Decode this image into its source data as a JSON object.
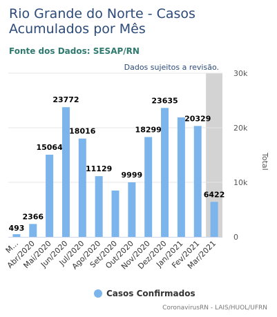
{
  "header": {
    "title": "Rio Grande do Norte - Casos Acumulados por Mês",
    "source": "Fonte dos Dados: SESAP/RN",
    "note": "Dados sujeitos a revisão."
  },
  "legend": {
    "label": "Casos Confirmados"
  },
  "credit": "CoronavirusRN - LAIS/HUOL/UFRN",
  "colors": {
    "bar": "#7cb5ec",
    "highlight_band": "#d3d3d3"
  },
  "chart_data": {
    "type": "bar",
    "ylabel": "Total",
    "yaxis_position": "right",
    "ylim": [
      0,
      30000
    ],
    "yticks": [
      "0",
      "10k",
      "20k",
      "30k"
    ],
    "categories": [
      "M...",
      "Abr/2020",
      "Mai/2020",
      "Jun/2020",
      "Jul/2020",
      "Ago/2020",
      "Set/2020",
      "Out/2020",
      "Nov/2020",
      "Dez/2020",
      "Jan/2021",
      "Fev/2021",
      "Mar/2021"
    ],
    "series": [
      {
        "name": "Casos Confirmados",
        "values": [
          493,
          2366,
          15064,
          23772,
          18016,
          11129,
          8500,
          9999,
          18299,
          23635,
          21900,
          20329,
          6422
        ],
        "labels": [
          "493",
          "2366",
          "15064",
          "23772",
          "18016",
          "11129",
          "",
          "9999",
          "18299",
          "23635",
          "",
          "20329",
          "6422"
        ]
      }
    ],
    "highlight_category": "Mar/2021",
    "grid": true,
    "legend_position": "bottom"
  }
}
